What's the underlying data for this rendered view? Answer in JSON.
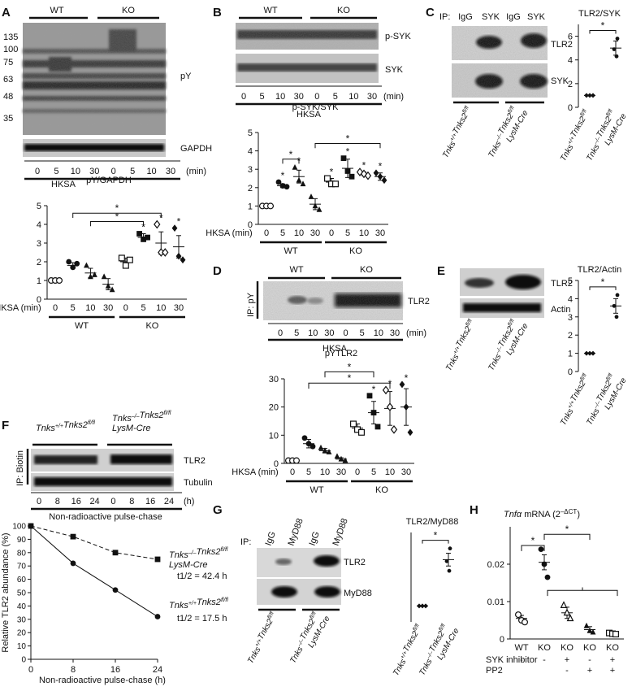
{
  "figure": {
    "A": {
      "letter": "A",
      "groups": [
        "WT",
        "KO"
      ],
      "mw_markers": [
        "135",
        "100",
        "75",
        "63",
        "48",
        "35"
      ],
      "blot_labels": [
        "pY",
        "GAPDH"
      ],
      "timepoints": [
        "0",
        "5",
        "10",
        "30",
        "0",
        "5",
        "10",
        "30"
      ],
      "time_unit": "(min)",
      "treatment": "HKSA",
      "x_prefix": "HKSA (min)",
      "chart": {
        "type": "scatter",
        "title": "pY/GAPDH",
        "ylim": [
          0,
          5
        ],
        "yticks": [
          "0",
          "1",
          "2",
          "3",
          "4",
          "5"
        ],
        "categories": [
          "0",
          "5",
          "10",
          "30",
          "0",
          "5",
          "10",
          "30"
        ],
        "group_labels": [
          "WT",
          "KO"
        ],
        "means": [
          1.0,
          1.8,
          1.4,
          0.8,
          2.0,
          3.3,
          3.0,
          2.8
        ],
        "sems": [
          0.0,
          0.15,
          0.25,
          0.3,
          0.2,
          0.2,
          0.6,
          0.6
        ],
        "points": [
          [
            1,
            1,
            1
          ],
          [
            2,
            1.7,
            1.9
          ],
          [
            1.8,
            1.2,
            1.3
          ],
          [
            1.2,
            0.7,
            0.5
          ],
          [
            2.2,
            1.8,
            2.1
          ],
          [
            3.5,
            3.2,
            3.3
          ],
          [
            4,
            2.5,
            2.5
          ],
          [
            3.8,
            2.3,
            2.1
          ]
        ],
        "stars": [
          "",
          "",
          "",
          "",
          "",
          "*",
          "*",
          "*"
        ],
        "bracket_stars": [
          "*",
          "*"
        ]
      }
    },
    "B": {
      "letter": "B",
      "groups": [
        "WT",
        "KO"
      ],
      "blot_labels": [
        "p-SYK",
        "SYK"
      ],
      "timepoints": [
        "0",
        "5",
        "10",
        "30",
        "0",
        "5",
        "10",
        "30"
      ],
      "time_unit": "(min)",
      "treatment": "HKSA",
      "x_prefix": "HKSA (min)",
      "chart": {
        "type": "scatter",
        "title": "p-SYK/SYK",
        "ylim": [
          0,
          5
        ],
        "yticks": [
          "0",
          "1",
          "2",
          "3",
          "4",
          "5"
        ],
        "categories": [
          "0",
          "5",
          "10",
          "30",
          "0",
          "5",
          "10",
          "30"
        ],
        "group_labels": [
          "WT",
          "KO"
        ],
        "means": [
          1.0,
          2.1,
          2.6,
          1.1,
          2.3,
          3.05,
          2.75,
          2.6
        ],
        "sems": [
          0.0,
          0.1,
          0.35,
          0.3,
          0.2,
          0.5,
          0.1,
          0.2
        ],
        "points": [
          [
            1,
            1,
            1
          ],
          [
            2.3,
            2.1,
            2.05
          ],
          [
            3.1,
            2.4,
            2.2
          ],
          [
            1.5,
            1,
            0.8
          ],
          [
            2.5,
            2.2,
            2.2
          ],
          [
            3.6,
            2.9,
            2.6
          ],
          [
            2.85,
            2.75,
            2.65
          ],
          [
            2.8,
            2.6,
            2.4
          ]
        ],
        "stars": [
          "",
          "*",
          "*",
          "",
          "*",
          "*",
          "*",
          "*"
        ],
        "bracket_stars": [
          "*",
          "*"
        ]
      }
    },
    "C": {
      "letter": "C",
      "ip_prefix": "IP:",
      "ip_lanes": [
        "IgG",
        "SYK",
        "IgG",
        "SYK"
      ],
      "blot_labels": [
        "TLR2",
        "SYK"
      ],
      "genotypes": [
        "Tnks+/+Tnks2fl/fl",
        "Tnks–/–Tnks2fl/fl LysM-Cre"
      ],
      "chart": {
        "type": "scatter",
        "title": "TLR2/SYK",
        "ylim": [
          0,
          7
        ],
        "yticks": [
          "0",
          "2",
          "4",
          "6"
        ],
        "categories": [
          "Tnks+/+Tnks2fl/fl",
          "Tnks–/–Tnks2fl/fl LysM-Cre"
        ],
        "means": [
          1.0,
          5.0
        ],
        "sems": [
          0.0,
          0.6
        ],
        "points": [
          [
            1,
            1,
            1
          ],
          [
            5.8,
            4.9,
            4.3
          ]
        ],
        "bracket_stars": [
          "*"
        ]
      }
    },
    "D": {
      "letter": "D",
      "ip_label": "IP: pY",
      "groups": [
        "WT",
        "KO"
      ],
      "blot_labels": [
        "TLR2"
      ],
      "timepoints": [
        "0",
        "5",
        "10",
        "30",
        "0",
        "5",
        "10",
        "30"
      ],
      "time_unit": "(min)",
      "treatment": "HKSA",
      "x_prefix": "HKSA (min)",
      "chart": {
        "type": "scatter",
        "title": "pYTLR2",
        "ylim": [
          0,
          30
        ],
        "yticks": [
          "0",
          "10",
          "20",
          "30"
        ],
        "categories": [
          "0",
          "5",
          "10",
          "30",
          "0",
          "5",
          "10",
          "30"
        ],
        "group_labels": [
          "WT",
          "KO"
        ],
        "means": [
          1.0,
          7.0,
          4.5,
          1.5,
          12.5,
          18.0,
          19.5,
          20.0
        ],
        "sems": [
          0.0,
          1.5,
          0.8,
          0.5,
          1.5,
          4.0,
          6.0,
          6.5
        ],
        "points": [
          [
            1,
            1,
            1
          ],
          [
            9,
            7,
            6
          ],
          [
            5.5,
            4.5,
            4
          ],
          [
            2.5,
            1.5,
            1
          ],
          [
            14,
            12,
            11
          ],
          [
            24,
            18,
            13
          ],
          [
            26,
            20,
            12
          ],
          [
            28,
            20,
            11
          ]
        ],
        "stars": [
          "",
          "",
          "",
          "",
          "",
          "*",
          "*",
          "*"
        ],
        "bracket_stars": [
          "*",
          "*"
        ]
      }
    },
    "E": {
      "letter": "E",
      "blot_labels": [
        "TLR2",
        "Actin"
      ],
      "genotypes": [
        "Tnks+/+Tnks2fl/fl",
        "Tnks–/–Tnks2fl/fl LysM-Cre"
      ],
      "chart": {
        "type": "scatter",
        "title": "TLR2/Actin",
        "ylim": [
          0,
          5
        ],
        "yticks": [
          "0",
          "1",
          "2",
          "3",
          "4",
          "5"
        ],
        "categories": [
          "Tnks+/+Tnks2fl/fl",
          "Tnks–/–Tnks2fl/fl LysM-Cre"
        ],
        "means": [
          1.0,
          3.6
        ],
        "sems": [
          0.0,
          0.4
        ],
        "points": [
          [
            1,
            1,
            1
          ],
          [
            4.2,
            3.6,
            3.0
          ]
        ],
        "bracket_stars": [
          "*"
        ]
      }
    },
    "F": {
      "letter": "F",
      "ip_label": "IP: Biotin",
      "genotypes": [
        "Tnks+/+Tnks2fl/fl",
        "Tnks–/–Tnks2fl/fl LysM-Cre"
      ],
      "blot_labels": [
        "TLR2",
        "Tubulin"
      ],
      "timepoints": [
        "0",
        "8",
        "16",
        "24",
        "0",
        "8",
        "16",
        "24"
      ],
      "time_unit": "(h)",
      "blot_caption": "Non-radioactive pulse-chase",
      "chart": {
        "type": "line",
        "xlabel": "Non-radioactive pulse-chase (h)",
        "ylabel": "Relative TLR2 abundance (%)",
        "xlim": [
          0,
          24
        ],
        "ylim": [
          0,
          100
        ],
        "xticks": [
          "0",
          "8",
          "16",
          "24"
        ],
        "yticks": [
          "0",
          "10",
          "20",
          "30",
          "40",
          "50",
          "60",
          "70",
          "80",
          "90",
          "100"
        ],
        "series": [
          {
            "name": "Tnks–/–Tnks2fl/fl LysM-Cre",
            "halflife": "t1/2 = 42.4 h",
            "x": [
              0,
              8,
              16,
              24
            ],
            "y": [
              100,
              92,
              80,
              75
            ],
            "style": "dashed",
            "marker": "square"
          },
          {
            "name": "Tnks+/+Tnks2fl/fl",
            "halflife": "t1/2 = 17.5 h",
            "x": [
              0,
              8,
              16,
              24
            ],
            "y": [
              100,
              72,
              52,
              32
            ],
            "style": "solid",
            "marker": "circle"
          }
        ]
      }
    },
    "G": {
      "letter": "G",
      "ip_prefix": "IP:",
      "ip_lanes": [
        "IgG",
        "MyD88",
        "IgG",
        "MyD88"
      ],
      "blot_labels": [
        "TLR2",
        "MyD88"
      ],
      "genotypes": [
        "Tnks+/+Tnks2fl/fl",
        "Tnks–/–Tnks2fl/fl LysM-Cre"
      ],
      "chart": {
        "type": "scatter",
        "title": "TLR2/MyD88",
        "categories": [
          "Tnks+/+Tnks2fl/fl",
          "Tnks–/–Tnks2fl/fl LysM-Cre"
        ],
        "means": [
          1.0,
          2.45
        ],
        "sems": [
          0.0,
          0.2
        ],
        "points": [
          [
            1,
            1,
            1
          ],
          [
            2.8,
            2.4,
            2.1
          ]
        ],
        "bracket_stars": [
          "*"
        ]
      }
    },
    "H": {
      "letter": "H",
      "chart": {
        "type": "scatter",
        "title_gene": "Tnfα",
        "title_rest": " mRNA (2",
        "title_sup": "–ΔCT",
        "title_end": ")",
        "ylim": [
          0,
          0.03
        ],
        "yticks": [
          "0",
          "0.01",
          "0.02"
        ],
        "categories": [
          "WT",
          "KO",
          "KO",
          "KO",
          "KO"
        ],
        "treatments": [
          {
            "name": "SYK inhibitor",
            "values": [
              "-",
              "-",
              "+",
              "-",
              "+"
            ]
          },
          {
            "name": "PP2",
            "values": [
              "-",
              "-",
              "-",
              "+",
              "+"
            ]
          }
        ],
        "means": [
          0.0055,
          0.0205,
          0.007,
          0.0025,
          0.0015
        ],
        "sems": [
          0.0008,
          0.002,
          0.0015,
          0.0008,
          0.0003
        ],
        "points": [
          [
            0.0065,
            0.005,
            0.0045
          ],
          [
            0.024,
            0.02,
            0.0165
          ],
          [
            0.009,
            0.007,
            0.0055
          ],
          [
            0.0035,
            0.0022,
            0.0018
          ],
          [
            0.0016,
            0.0014,
            0.0013
          ]
        ],
        "bracket_stars": [
          "*",
          "*"
        ]
      }
    }
  }
}
